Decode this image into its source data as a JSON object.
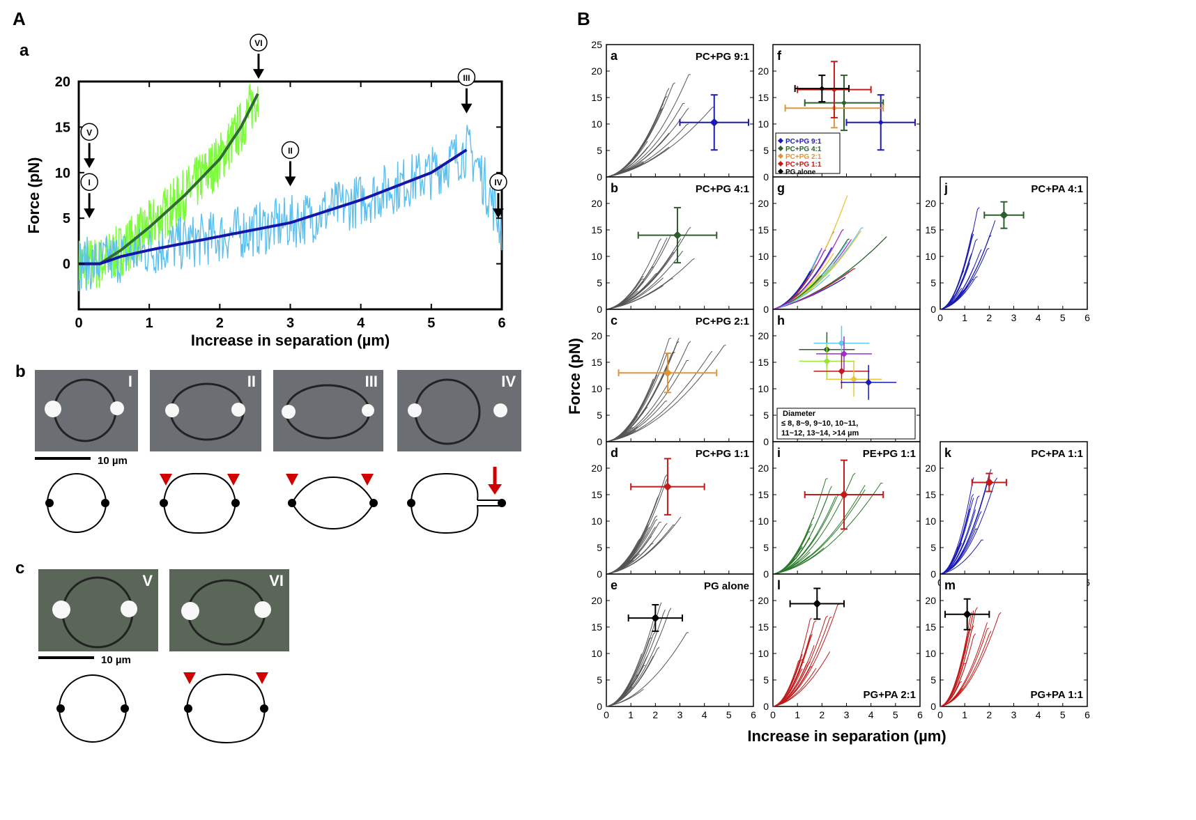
{
  "figure": {
    "panel_A_label": "A",
    "panel_B_label": "B",
    "sub_a": "a",
    "sub_b": "b",
    "sub_c": "c",
    "scale_bar_text": "10 µm",
    "micro_b_labels": [
      "I",
      "II",
      "III",
      "IV"
    ],
    "micro_c_labels": [
      "V",
      "VI"
    ]
  },
  "colors": {
    "green_raw": "#7CFC3A",
    "green_fit": "#2F6B32",
    "blue_raw": "#5BC0F0",
    "blue_fit": "#1515A8",
    "gray_trace": "#555555",
    "red_marker": "#D10000",
    "blue_trace": "#1a1ab5",
    "green_trace": "#2d7a2d",
    "red_trace": "#c01a1a"
  },
  "chart_data": [
    {
      "id": "A-a",
      "type": "line",
      "xlabel": "Increase in separation (µm)",
      "ylabel": "Force (pN)",
      "xlim": [
        0,
        6
      ],
      "ylim": [
        -5,
        20
      ],
      "xticks": [
        "0",
        "1",
        "2",
        "3",
        "4",
        "5",
        "6"
      ],
      "yticks": [
        "0",
        "5",
        "10",
        "15",
        "20"
      ],
      "annotations": [
        {
          "label": "I",
          "x": 0.15,
          "y": 5
        },
        {
          "label": "II",
          "x": 3.0,
          "y": 8.5
        },
        {
          "label": "III",
          "x": 5.5,
          "y": 16.5
        },
        {
          "label": "IV",
          "x": 5.95,
          "y": 5
        },
        {
          "label": "V",
          "x": 0.15,
          "y": 10.5
        },
        {
          "label": "VI",
          "x": 2.55,
          "y": 20.3
        }
      ],
      "series": [
        {
          "x": [
            0,
            0.3,
            0.6,
            1.0,
            1.5,
            2.0,
            2.3,
            2.55
          ],
          "y": [
            0,
            0,
            1.5,
            4.0,
            7.5,
            11.5,
            15.0,
            18.8
          ]
        },
        {
          "x": [
            0,
            0.3,
            0.6,
            1.0,
            2.0,
            3.0,
            4.0,
            5.0,
            5.5,
            5.65,
            6.0
          ],
          "y": [
            0,
            0,
            0.8,
            1.5,
            3.0,
            4.5,
            7.0,
            10.0,
            12.5,
            11.0,
            4.0
          ]
        }
      ]
    },
    {
      "id": "B-grid",
      "type": "line",
      "ylabel": "Force (pN)",
      "xlabel": "Increase in separation (µm)",
      "xticks": [
        "0",
        "1",
        "2",
        "3",
        "4",
        "5",
        "6"
      ],
      "yticks": [
        "0",
        "5",
        "10",
        "15",
        "20"
      ],
      "ytick_top_first": "25",
      "xlim": [
        0,
        6
      ],
      "ylim": [
        0,
        25
      ],
      "panels": [
        {
          "key": "a",
          "title": "PC+PG 9:1",
          "marker": {
            "x": 4.4,
            "y": 10.3,
            "xerr": 1.4,
            "yerr": 5.2
          },
          "marker_color": "#1a1ab5"
        },
        {
          "key": "b",
          "title": "PC+PG 4:1",
          "marker": {
            "x": 2.9,
            "y": 14.0,
            "xerr": 1.6,
            "yerr": 5.2
          },
          "marker_color": "#2d5f2d"
        },
        {
          "key": "c",
          "title": "PC+PG 2:1",
          "marker": {
            "x": 2.5,
            "y": 13.0,
            "xerr": 2.0,
            "yerr": 3.7
          },
          "marker_color": "#e0943a"
        },
        {
          "key": "d",
          "title": "PC+PG 1:1",
          "marker": {
            "x": 2.5,
            "y": 16.5,
            "xerr": 1.5,
            "yerr": 5.3
          },
          "marker_color": "#c01a1a"
        },
        {
          "key": "e",
          "title": "PG alone",
          "marker": {
            "x": 2.0,
            "y": 16.7,
            "xerr": 1.1,
            "yerr": 2.5
          },
          "marker_color": "#000000"
        },
        {
          "key": "f",
          "title": "",
          "markers": [
            {
              "x": 4.4,
              "y": 10.3,
              "xerr": 1.4,
              "yerr": 5.2,
              "color": "#1a1ab5"
            },
            {
              "x": 2.9,
              "y": 14.0,
              "xerr": 1.6,
              "yerr": 5.2,
              "color": "#2d5f2d"
            },
            {
              "x": 2.5,
              "y": 13.0,
              "xerr": 2.0,
              "yerr": 3.7,
              "color": "#e0943a"
            },
            {
              "x": 2.5,
              "y": 16.5,
              "xerr": 1.5,
              "yerr": 5.3,
              "color": "#c01a1a"
            },
            {
              "x": 2.0,
              "y": 16.7,
              "xerr": 1.1,
              "yerr": 2.5,
              "color": "#000000"
            }
          ],
          "legend": [
            "PC+PG 9:1",
            "PC+PG 4:1",
            "PC+PG 2:1",
            "PC+PG 1:1",
            "PG alone"
          ]
        },
        {
          "key": "g",
          "title": ""
        },
        {
          "key": "h",
          "title": "",
          "legend_title": "Diameter",
          "legend_line1": "≤ 8,  8~9,  9~10,  10~11,",
          "legend_line2": "11~12,  13~14,  >14 µm"
        },
        {
          "key": "i",
          "title": "PE+PG 1:1",
          "marker": {
            "x": 2.9,
            "y": 15.0,
            "xerr": 1.6,
            "yerr": 6.5
          },
          "marker_color": "#c01a1a"
        },
        {
          "key": "j",
          "title": "PC+PA 4:1",
          "marker": {
            "x": 2.6,
            "y": 17.8,
            "xerr": 0.8,
            "yerr": 2.5
          },
          "marker_color": "#2d5f2d"
        },
        {
          "key": "k",
          "title": "PC+PA 1:1",
          "marker": {
            "x": 2.0,
            "y": 17.3,
            "xerr": 0.7,
            "yerr": 1.7
          },
          "marker_color": "#c01a1a"
        },
        {
          "key": "l",
          "title": "PG+PA 2:1",
          "marker": {
            "x": 1.8,
            "y": 19.4,
            "xerr": 1.1,
            "yerr": 2.9
          },
          "marker_color": "#000000"
        },
        {
          "key": "m",
          "title": "PG+PA 1:1",
          "marker": {
            "x": 1.1,
            "y": 17.4,
            "xerr": 0.9,
            "yerr": 2.9
          },
          "marker_color": "#000000"
        }
      ]
    }
  ]
}
